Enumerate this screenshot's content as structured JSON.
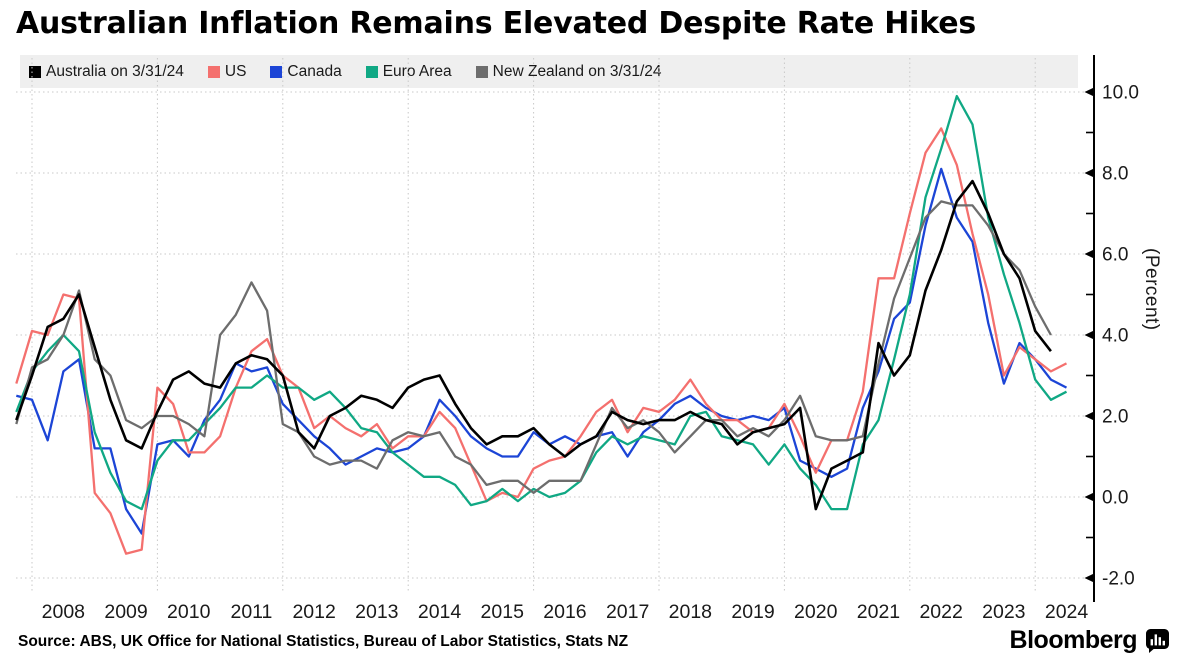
{
  "title": "Australian Inflation Remains Elevated Despite Rate Hikes",
  "source_line": "Source: ABS, UK Office for National Statistics, Bureau of Labor Statistics, Stats NZ",
  "branding": {
    "wordmark": "Bloomberg",
    "icon": "bloomberg-terminal-icon"
  },
  "chart_data": {
    "type": "line",
    "title": "Australian Inflation Remains Elevated Despite Rate Hikes",
    "ylabel": "(Percent)",
    "legend_position": "top",
    "grid": true,
    "ylim": [
      -2.7,
      10.6
    ],
    "x_start": 2007.75,
    "x_step": 0.25,
    "xticks": [
      2008,
      2009,
      2010,
      2011,
      2012,
      2013,
      2014,
      2015,
      2016,
      2017,
      2018,
      2019,
      2020,
      2021,
      2022,
      2023,
      2024
    ],
    "xgrid_years": [
      2008,
      2010,
      2012,
      2014,
      2016,
      2018,
      2020,
      2022,
      2024
    ],
    "ytick_values": [
      10,
      8,
      6,
      4,
      2,
      0,
      -2
    ],
    "ytick_labels": [
      "10.0",
      "8.0",
      "6.0",
      "4.0",
      "2.0",
      "0.0",
      "-2.0"
    ],
    "ytick_minor_values": [
      9,
      7,
      5,
      3,
      1,
      -1
    ],
    "colors": {
      "grid": "#c8c8c8",
      "axis": "#000000",
      "legend_background": "#efefef"
    },
    "series": [
      {
        "name": "Australia on 3/31/24",
        "color": "#000000",
        "values": [
          1.9,
          3.0,
          4.2,
          4.4,
          5.0,
          3.7,
          2.4,
          1.4,
          1.2,
          2.1,
          2.9,
          3.1,
          2.8,
          2.7,
          3.3,
          3.5,
          3.4,
          3.0,
          1.6,
          1.2,
          2.0,
          2.2,
          2.5,
          2.4,
          2.2,
          2.7,
          2.9,
          3.0,
          2.3,
          1.7,
          1.3,
          1.5,
          1.5,
          1.7,
          1.3,
          1.0,
          1.3,
          1.5,
          2.1,
          1.9,
          1.8,
          1.9,
          1.9,
          2.1,
          1.9,
          1.8,
          1.3,
          1.6,
          1.7,
          1.8,
          2.2,
          -0.3,
          0.7,
          0.9,
          1.1,
          3.8,
          3.0,
          3.5,
          5.1,
          6.1,
          7.3,
          7.8,
          7.0,
          6.0,
          5.4,
          4.1,
          3.6
        ]
      },
      {
        "name": "US",
        "color": "#f4706e",
        "values": [
          2.8,
          4.1,
          4.0,
          5.0,
          4.9,
          0.1,
          -0.4,
          -1.4,
          -1.3,
          2.7,
          2.3,
          1.1,
          1.1,
          1.5,
          2.7,
          3.6,
          3.9,
          3.0,
          2.7,
          1.7,
          2.0,
          1.7,
          1.5,
          1.8,
          1.2,
          1.5,
          1.5,
          2.1,
          1.7,
          0.8,
          -0.1,
          0.1,
          0.0,
          0.7,
          0.9,
          1.0,
          1.5,
          2.1,
          2.4,
          1.6,
          2.2,
          2.1,
          2.4,
          2.9,
          2.3,
          1.9,
          1.9,
          1.6,
          1.7,
          2.3,
          1.5,
          0.6,
          1.4,
          1.4,
          2.6,
          5.4,
          5.4,
          7.0,
          8.5,
          9.1,
          8.2,
          6.5,
          5.0,
          3.0,
          3.7,
          3.4,
          3.1,
          3.3
        ]
      },
      {
        "name": "Canada",
        "color": "#1c45d6",
        "values": [
          2.5,
          2.4,
          1.4,
          3.1,
          3.4,
          1.2,
          1.2,
          -0.3,
          -0.9,
          1.3,
          1.4,
          1.0,
          1.9,
          2.4,
          3.3,
          3.1,
          3.2,
          2.3,
          1.9,
          1.5,
          1.2,
          0.8,
          1.0,
          1.2,
          1.1,
          1.2,
          1.5,
          2.4,
          2.0,
          1.5,
          1.2,
          1.0,
          1.0,
          1.6,
          1.3,
          1.5,
          1.3,
          1.5,
          1.6,
          1.0,
          1.6,
          1.9,
          2.3,
          2.5,
          2.2,
          2.0,
          1.9,
          2.0,
          1.9,
          2.2,
          0.9,
          0.7,
          0.5,
          0.7,
          2.2,
          3.1,
          4.4,
          4.8,
          6.7,
          8.1,
          6.9,
          6.3,
          4.3,
          2.8,
          3.8,
          3.4,
          2.9,
          2.7
        ]
      },
      {
        "name": "Euro Area",
        "color": "#10a884",
        "values": [
          2.1,
          3.1,
          3.6,
          4.0,
          3.6,
          1.6,
          0.6,
          -0.1,
          -0.3,
          0.9,
          1.4,
          1.4,
          1.8,
          2.2,
          2.7,
          2.7,
          3.0,
          2.7,
          2.7,
          2.4,
          2.6,
          2.2,
          1.7,
          1.6,
          1.1,
          0.8,
          0.5,
          0.5,
          0.3,
          -0.2,
          -0.1,
          0.2,
          -0.1,
          0.2,
          0.0,
          0.1,
          0.4,
          1.1,
          1.5,
          1.3,
          1.5,
          1.4,
          1.3,
          2.0,
          2.1,
          1.5,
          1.4,
          1.3,
          0.8,
          1.3,
          0.7,
          0.3,
          -0.3,
          -0.3,
          1.3,
          1.9,
          3.4,
          5.0,
          7.4,
          8.6,
          9.9,
          9.2,
          6.9,
          5.5,
          4.3,
          2.9,
          2.4,
          2.6
        ]
      },
      {
        "name": "New Zealand on 3/31/24",
        "color": "#6d6d6d",
        "values": [
          1.8,
          3.2,
          3.4,
          4.0,
          5.1,
          3.4,
          3.0,
          1.9,
          1.7,
          2.0,
          2.0,
          1.8,
          1.5,
          4.0,
          4.5,
          5.3,
          4.6,
          1.8,
          1.6,
          1.0,
          0.8,
          0.9,
          0.9,
          0.7,
          1.4,
          1.6,
          1.5,
          1.6,
          1.0,
          0.8,
          0.3,
          0.4,
          0.4,
          0.1,
          0.4,
          0.4,
          0.4,
          1.3,
          2.2,
          1.7,
          1.9,
          1.6,
          1.1,
          1.5,
          1.9,
          1.9,
          1.5,
          1.7,
          1.5,
          1.9,
          2.5,
          1.5,
          1.4,
          1.4,
          1.5,
          3.3,
          4.9,
          5.9,
          6.9,
          7.3,
          7.2,
          7.2,
          6.7,
          6.0,
          5.6,
          4.7,
          4.0
        ]
      }
    ]
  }
}
